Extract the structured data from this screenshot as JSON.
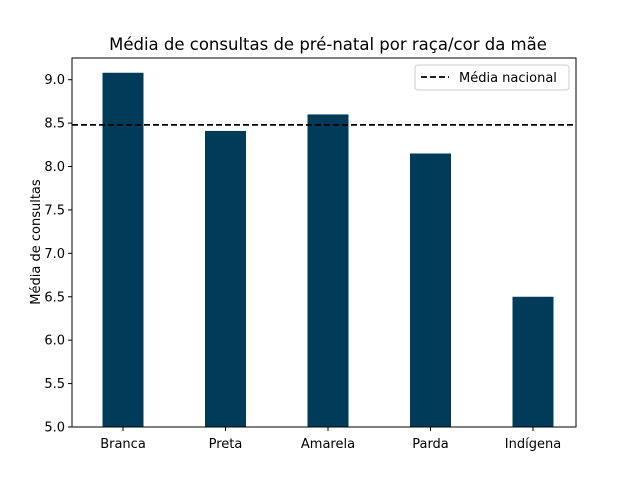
{
  "chart_data": {
    "type": "bar",
    "title": "Média de consultas de pré-natal por raça/cor da mãe",
    "xlabel": "",
    "ylabel": "Média de consultas",
    "categories": [
      "Branca",
      "Preta",
      "Amarela",
      "Parda",
      "Indígena"
    ],
    "values": [
      9.08,
      8.41,
      8.6,
      8.15,
      6.5
    ],
    "ylim": [
      5.0,
      9.25
    ],
    "yticks": [
      5.0,
      5.5,
      6.0,
      6.5,
      7.0,
      7.5,
      8.0,
      8.5,
      9.0
    ],
    "ytick_labels": [
      "5.0",
      "5.5",
      "6.0",
      "6.5",
      "7.0",
      "7.5",
      "8.0",
      "8.5",
      "9.0"
    ],
    "reference_line": {
      "label": "Média nacional",
      "value": 8.48,
      "style": "dashed",
      "color": "#000000"
    },
    "bar_color": "#003b5a",
    "grid": false,
    "legend_position": "top-right"
  }
}
